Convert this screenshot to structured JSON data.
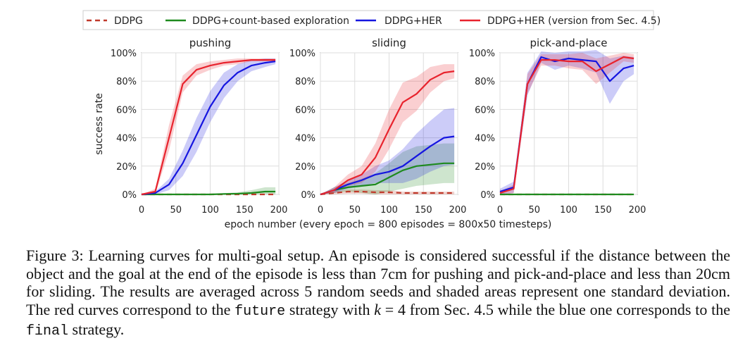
{
  "legend": {
    "entries": [
      "DDPG",
      "DDPG+count-based exploration",
      "DDPG+HER",
      "DDPG+HER (version from Sec. 4.5)"
    ]
  },
  "colors": {
    "ddpg": "#c0392b",
    "count": "#1e8a1e",
    "her": "#1515e0",
    "her45": "#e8232d"
  },
  "axes": {
    "ylabel": "success rate",
    "xlabel": "epoch number (every epoch = 800 episodes = 800x50 timesteps)",
    "yticks": [
      "0%",
      "20%",
      "40%",
      "60%",
      "80%",
      "100%"
    ],
    "xticks": [
      "0",
      "50",
      "100",
      "150",
      "200"
    ]
  },
  "chart_data": [
    {
      "type": "line",
      "title": "pushing",
      "xlim": [
        0,
        200
      ],
      "ylim": [
        0,
        100
      ],
      "x": [
        0,
        20,
        40,
        60,
        80,
        100,
        120,
        140,
        160,
        180,
        195
      ],
      "series": [
        {
          "name": "DDPG",
          "values": [
            0,
            0,
            0,
            0,
            0,
            0,
            0,
            0,
            0,
            0,
            0
          ],
          "std": [
            0,
            0,
            0,
            0,
            0,
            0,
            0,
            0,
            0,
            0,
            0
          ]
        },
        {
          "name": "DDPG+count-based exploration",
          "values": [
            0,
            0,
            0,
            0,
            0,
            0,
            0.3,
            0.5,
            1,
            2,
            2
          ],
          "std": [
            0,
            0,
            0,
            0,
            0,
            0,
            0.5,
            1,
            2,
            3,
            3
          ]
        },
        {
          "name": "DDPG+HER",
          "values": [
            0,
            1,
            7,
            22,
            42,
            62,
            77,
            86,
            91,
            93,
            94
          ],
          "std": [
            0,
            1,
            4,
            9,
            12,
            11,
            9,
            6,
            4,
            3,
            2
          ]
        },
        {
          "name": "DDPG+HER (version from Sec. 4.5)",
          "values": [
            0,
            2,
            40,
            78,
            88,
            91,
            93,
            94,
            95,
            95,
            95
          ],
          "std": [
            0,
            2,
            9,
            6,
            4,
            3,
            2,
            2,
            1,
            1,
            1
          ]
        }
      ]
    },
    {
      "type": "line",
      "title": "sliding",
      "xlim": [
        0,
        200
      ],
      "ylim": [
        0,
        100
      ],
      "x": [
        0,
        20,
        40,
        60,
        80,
        100,
        120,
        140,
        160,
        180,
        195
      ],
      "series": [
        {
          "name": "DDPG",
          "values": [
            0,
            1,
            2,
            2,
            1.5,
            1.5,
            1,
            1,
            1,
            1,
            1
          ],
          "std": [
            0,
            1,
            1.5,
            1.5,
            1.5,
            1.5,
            1,
            1,
            1,
            1,
            1
          ]
        },
        {
          "name": "DDPG+count-based exploration",
          "values": [
            0,
            3,
            5,
            6,
            7,
            12,
            17,
            20,
            21,
            22,
            22
          ],
          "std": [
            0,
            2,
            3,
            5,
            8,
            10,
            13,
            14,
            14,
            14,
            14
          ]
        },
        {
          "name": "DDPG+HER",
          "values": [
            0,
            3,
            7,
            10,
            14,
            16,
            20,
            27,
            34,
            40,
            41
          ],
          "std": [
            0,
            2,
            3,
            4,
            6,
            8,
            12,
            16,
            18,
            20,
            20
          ]
        },
        {
          "name": "DDPG+HER (version from Sec. 4.5)",
          "values": [
            0,
            3,
            10,
            14,
            26,
            46,
            65,
            71,
            81,
            86,
            87
          ],
          "std": [
            0,
            2,
            4,
            6,
            10,
            14,
            14,
            12,
            9,
            6,
            5
          ]
        }
      ]
    },
    {
      "type": "line",
      "title": "pick-and-place",
      "xlim": [
        0,
        200
      ],
      "ylim": [
        0,
        100
      ],
      "x": [
        0,
        20,
        40,
        60,
        80,
        100,
        120,
        140,
        160,
        180,
        195
      ],
      "series": [
        {
          "name": "DDPG",
          "values": [
            0,
            0,
            0,
            0,
            0,
            0,
            0,
            0,
            0,
            0,
            0
          ],
          "std": [
            0,
            0,
            0,
            0,
            0,
            0,
            0,
            0,
            0,
            0,
            0
          ]
        },
        {
          "name": "DDPG+count-based exploration",
          "values": [
            0,
            0,
            0,
            0,
            0,
            0,
            0,
            0,
            0,
            0,
            0
          ],
          "std": [
            0,
            0,
            0,
            0,
            0,
            0,
            0,
            0,
            0,
            0,
            0
          ]
        },
        {
          "name": "DDPG+HER",
          "values": [
            2,
            5,
            78,
            97,
            94,
            96,
            95,
            94,
            80,
            89,
            91
          ],
          "std": [
            2,
            4,
            8,
            4,
            6,
            5,
            6,
            8,
            16,
            9,
            6
          ]
        },
        {
          "name": "DDPG+HER (version from Sec. 4.5)",
          "values": [
            1,
            4,
            78,
            95,
            95,
            94,
            94,
            87,
            92,
            97,
            96
          ],
          "std": [
            1,
            3,
            7,
            4,
            4,
            5,
            6,
            9,
            6,
            3,
            3
          ]
        }
      ]
    }
  ],
  "caption": {
    "p1": "Figure 3: Learning curves for multi-goal setup. An episode is considered successful if the distance between the object and the goal at the end of the episode is less than 7cm for pushing and pick-and-place and less than 20cm for sliding. The results are averaged across 5 random seeds and shaded areas represent one standard deviation. The red curves correspond to the ",
    "code1": "future",
    "p2": " strategy with ",
    "k_var": "k",
    "k_eq": " = 4",
    "p3": " from Sec. 4.5 while the blue one corresponds to the ",
    "code2": "final",
    "p4": " strategy."
  }
}
